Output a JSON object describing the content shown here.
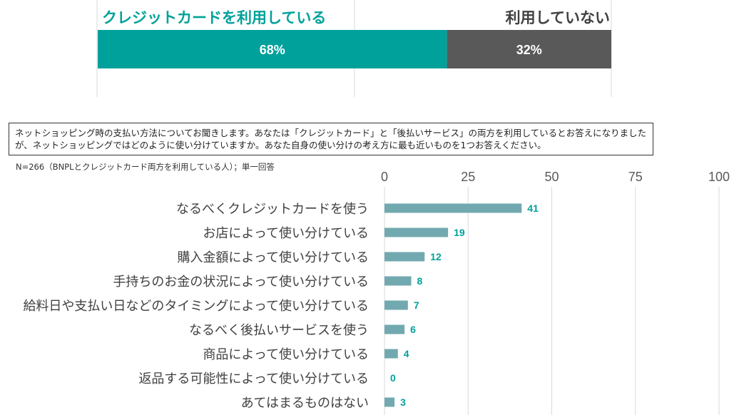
{
  "top_bar": {
    "label_used": "クレジットカードを利用している",
    "label_not_used": "利用していない",
    "value_used": "68%",
    "value_not_used": "32%",
    "share_used": 68,
    "share_not_used": 32,
    "color_used": "#00A19B",
    "color_not_used": "#595959"
  },
  "question": {
    "text": "ネットショッピング時の支払い方法についてお聞きします。あなたは「クレジットカード」と「後払いサービス」の両方を利用しているとお答えになりましたが、ネットショッピングではどのように使い分けていますか。あなた自身の使い分けの考え方に最も近いものを1つお答えください。",
    "note": "N=266（BNPLとクレジットカード両方を利用している人）；単一回答"
  },
  "chart_data": {
    "type": "bar",
    "orientation": "horizontal",
    "categories": [
      "なるべくクレジットカードを使う",
      "お店によって使い分けている",
      "購入金額によって使い分けている",
      "手持ちのお金の状況によって使い分けている",
      "給料日や支払い日などのタイミングによって使い分けている",
      "なるべく後払いサービスを使う",
      "商品によって使い分けている",
      "返品する可能性によって使い分けている",
      "あてはまるものはない"
    ],
    "values": [
      41,
      19,
      12,
      8,
      7,
      6,
      4,
      0,
      3
    ],
    "xlim": [
      0,
      100
    ],
    "ticks": [
      0,
      25,
      50,
      75,
      100
    ],
    "axis_position": "top",
    "grid": true,
    "bar_color": "#72A9B0",
    "label_color": "#00A19B"
  }
}
